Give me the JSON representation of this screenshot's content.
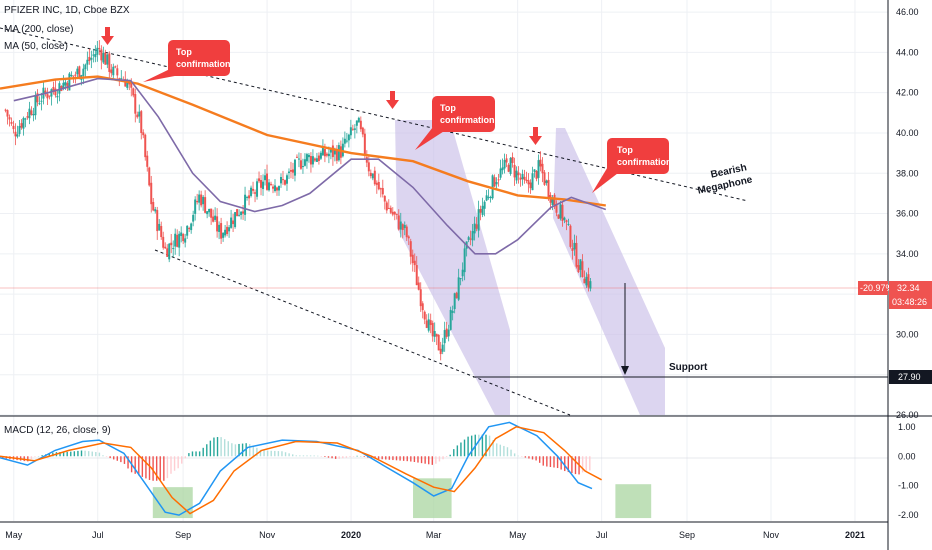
{
  "header": {
    "symbol_line": "PFIZER INC, 1D, Cboe BZX",
    "ma200_label": "MA (200, close)",
    "ma50_label": "MA (50, close)",
    "macd_label": "MACD (12, 26, close, 9)"
  },
  "colors": {
    "ma200": "#f57c1f",
    "ma50": "#7e6aa8",
    "candle_up": "#26a69a",
    "candle_down": "#ef5350",
    "channel_fill": "#c9bfe8",
    "signal_box": "#a9d6a0",
    "callout": "#f03e3e",
    "macd_line": "#2196f3",
    "signal_line": "#ff6d00"
  },
  "price_axis": {
    "ticks": [
      "46.00",
      "44.00",
      "42.00",
      "40.00",
      "38.00",
      "36.00",
      "34.00",
      "32.00",
      "30.00",
      "28.00",
      "26.00"
    ],
    "tick_values": [
      46,
      44,
      42,
      40,
      38,
      36,
      34,
      32,
      30,
      28,
      26
    ],
    "range": [
      26,
      46.6
    ]
  },
  "macd_axis": {
    "ticks": [
      "1.00",
      "0.00",
      "-1.00",
      "-2.00"
    ],
    "tick_values": [
      1,
      0,
      -1,
      -2
    ],
    "range": [
      -2.2,
      1.3
    ]
  },
  "time_axis": {
    "labels": [
      "May",
      "Jul",
      "Sep",
      "Nov",
      "2020",
      "Mar",
      "May",
      "Jul",
      "Sep",
      "Nov",
      "2021"
    ],
    "label_days": [
      0,
      61,
      123,
      184,
      245,
      305,
      366,
      427,
      489,
      550,
      611
    ],
    "range": [
      -10,
      635
    ]
  },
  "tags": {
    "change": "-20.97%",
    "price": "32.34",
    "countdown": "03:48:26",
    "support": "27.90"
  },
  "annotations": {
    "top1": [
      "Top",
      "confirmation"
    ],
    "top2": [
      "Top",
      "confirmation"
    ],
    "top3": [
      "Top",
      "confirmation"
    ],
    "megaphone": [
      "Bearish",
      "Megaphone"
    ],
    "support": "Support"
  },
  "chart_data": {
    "type": "candlestick",
    "symbol": "PFIZER INC",
    "interval": "1D",
    "exchange": "Cboe BZX",
    "last_price": 32.34,
    "change_pct": -20.97,
    "support_level": 27.9,
    "price_anchors": [
      {
        "day": -10,
        "price": 41.9
      },
      {
        "day": 0,
        "price": 40.0
      },
      {
        "day": 10,
        "price": 41.0
      },
      {
        "day": 20,
        "price": 41.8
      },
      {
        "day": 35,
        "price": 42.4
      },
      {
        "day": 50,
        "price": 43.2
      },
      {
        "day": 62,
        "price": 44.2
      },
      {
        "day": 72,
        "price": 43.0
      },
      {
        "day": 82,
        "price": 42.6
      },
      {
        "day": 92,
        "price": 40.5
      },
      {
        "day": 100,
        "price": 36.5
      },
      {
        "day": 110,
        "price": 34.2
      },
      {
        "day": 125,
        "price": 35.2
      },
      {
        "day": 135,
        "price": 36.9
      },
      {
        "day": 150,
        "price": 35.0
      },
      {
        "day": 165,
        "price": 36.3
      },
      {
        "day": 182,
        "price": 37.6
      },
      {
        "day": 195,
        "price": 37.5
      },
      {
        "day": 210,
        "price": 38.7
      },
      {
        "day": 225,
        "price": 38.9
      },
      {
        "day": 238,
        "price": 39.1
      },
      {
        "day": 250,
        "price": 40.5
      },
      {
        "day": 258,
        "price": 38.3
      },
      {
        "day": 270,
        "price": 36.5
      },
      {
        "day": 285,
        "price": 35.0
      },
      {
        "day": 295,
        "price": 32.0
      },
      {
        "day": 303,
        "price": 30.0
      },
      {
        "day": 310,
        "price": 29.3
      },
      {
        "day": 318,
        "price": 31.0
      },
      {
        "day": 328,
        "price": 34.0
      },
      {
        "day": 340,
        "price": 36.3
      },
      {
        "day": 350,
        "price": 37.8
      },
      {
        "day": 360,
        "price": 38.5
      },
      {
        "day": 372,
        "price": 37.3
      },
      {
        "day": 382,
        "price": 38.3
      },
      {
        "day": 392,
        "price": 36.6
      },
      {
        "day": 400,
        "price": 35.7
      },
      {
        "day": 410,
        "price": 33.5
      },
      {
        "day": 420,
        "price": 32.3
      }
    ],
    "ma200": [
      {
        "day": -10,
        "price": 42.2
      },
      {
        "day": 30,
        "price": 42.65
      },
      {
        "day": 61,
        "price": 42.8
      },
      {
        "day": 90,
        "price": 42.45
      },
      {
        "day": 130,
        "price": 41.4
      },
      {
        "day": 184,
        "price": 39.9
      },
      {
        "day": 245,
        "price": 39.0
      },
      {
        "day": 290,
        "price": 38.6
      },
      {
        "day": 330,
        "price": 37.6
      },
      {
        "day": 366,
        "price": 36.9
      },
      {
        "day": 400,
        "price": 36.7
      },
      {
        "day": 430,
        "price": 36.4
      }
    ],
    "ma50": [
      {
        "day": 0,
        "price": 41.6
      },
      {
        "day": 25,
        "price": 42.0
      },
      {
        "day": 61,
        "price": 42.7
      },
      {
        "day": 85,
        "price": 42.6
      },
      {
        "day": 105,
        "price": 40.8
      },
      {
        "day": 130,
        "price": 38.0
      },
      {
        "day": 150,
        "price": 36.6
      },
      {
        "day": 175,
        "price": 36.1
      },
      {
        "day": 195,
        "price": 36.4
      },
      {
        "day": 215,
        "price": 37.0
      },
      {
        "day": 245,
        "price": 38.7
      },
      {
        "day": 265,
        "price": 38.7
      },
      {
        "day": 290,
        "price": 37.3
      },
      {
        "day": 315,
        "price": 35.4
      },
      {
        "day": 335,
        "price": 34.0
      },
      {
        "day": 350,
        "price": 34.0
      },
      {
        "day": 366,
        "price": 34.7
      },
      {
        "day": 390,
        "price": 36.3
      },
      {
        "day": 405,
        "price": 36.8
      },
      {
        "day": 430,
        "price": 36.2
      }
    ],
    "macd_line": [
      {
        "day": -10,
        "value": -0.05
      },
      {
        "day": 10,
        "value": -0.3
      },
      {
        "day": 30,
        "value": 0.2
      },
      {
        "day": 50,
        "value": 0.5
      },
      {
        "day": 62,
        "value": 0.55
      },
      {
        "day": 80,
        "value": 0.1
      },
      {
        "day": 95,
        "value": -0.9
      },
      {
        "day": 110,
        "value": -1.9
      },
      {
        "day": 120,
        "value": -2.0
      },
      {
        "day": 135,
        "value": -1.6
      },
      {
        "day": 150,
        "value": -0.5
      },
      {
        "day": 170,
        "value": 0.3
      },
      {
        "day": 195,
        "value": 0.55
      },
      {
        "day": 220,
        "value": 0.5
      },
      {
        "day": 250,
        "value": 0.2
      },
      {
        "day": 270,
        "value": -0.35
      },
      {
        "day": 290,
        "value": -0.9
      },
      {
        "day": 305,
        "value": -1.35
      },
      {
        "day": 318,
        "value": -1.1
      },
      {
        "day": 330,
        "value": 0.0
      },
      {
        "day": 345,
        "value": 1.0
      },
      {
        "day": 360,
        "value": 1.15
      },
      {
        "day": 380,
        "value": 0.7
      },
      {
        "day": 395,
        "value": 0.0
      },
      {
        "day": 410,
        "value": -0.9
      },
      {
        "day": 420,
        "value": -1.1
      }
    ],
    "signal_line": [
      {
        "day": -10,
        "value": 0.0
      },
      {
        "day": 15,
        "value": -0.15
      },
      {
        "day": 40,
        "value": 0.2
      },
      {
        "day": 65,
        "value": 0.45
      },
      {
        "day": 85,
        "value": 0.3
      },
      {
        "day": 100,
        "value": -0.4
      },
      {
        "day": 115,
        "value": -1.4
      },
      {
        "day": 128,
        "value": -1.95
      },
      {
        "day": 145,
        "value": -1.5
      },
      {
        "day": 160,
        "value": -0.5
      },
      {
        "day": 180,
        "value": 0.2
      },
      {
        "day": 205,
        "value": 0.5
      },
      {
        "day": 235,
        "value": 0.45
      },
      {
        "day": 260,
        "value": 0.0
      },
      {
        "day": 285,
        "value": -0.6
      },
      {
        "day": 305,
        "value": -1.05
      },
      {
        "day": 320,
        "value": -1.2
      },
      {
        "day": 335,
        "value": -0.4
      },
      {
        "day": 350,
        "value": 0.6
      },
      {
        "day": 365,
        "value": 1.0
      },
      {
        "day": 385,
        "value": 0.8
      },
      {
        "day": 400,
        "value": 0.2
      },
      {
        "day": 415,
        "value": -0.5
      },
      {
        "day": 427,
        "value": -0.8
      }
    ],
    "signal_boxes": [
      {
        "day_start": 101,
        "day_end": 130,
        "value_top": -1.05,
        "value_bottom": -2.1
      },
      {
        "day_start": 290,
        "day_end": 318,
        "value_top": -0.75,
        "value_bottom": -2.1
      },
      {
        "day_start": 437,
        "day_end": 463,
        "value_top": -0.95,
        "value_bottom": -2.1
      }
    ]
  }
}
